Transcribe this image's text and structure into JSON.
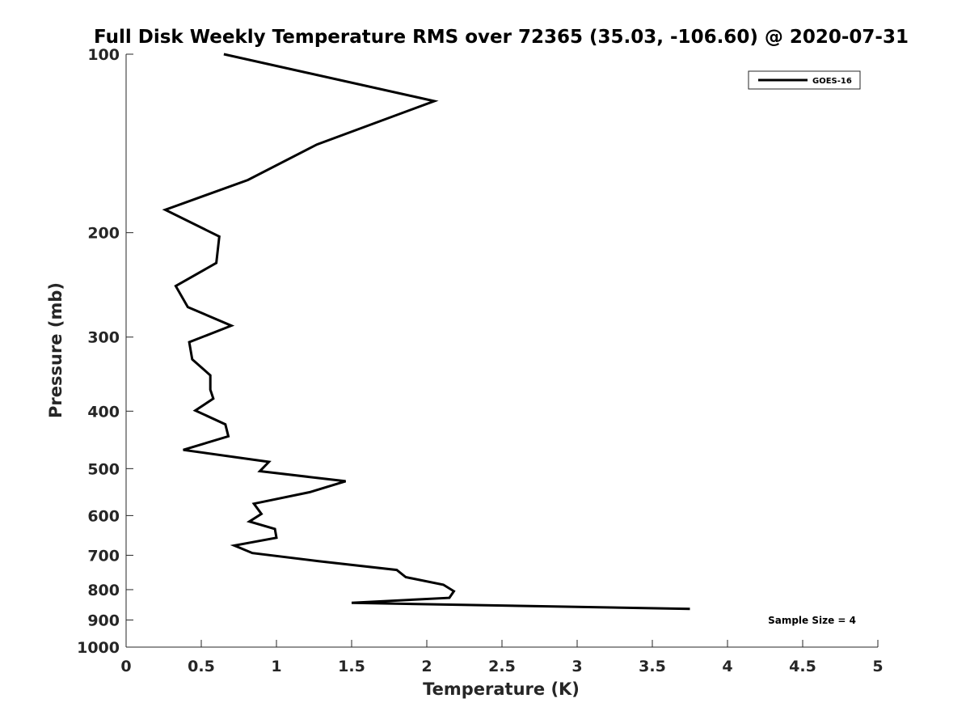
{
  "chart_data": {
    "type": "line",
    "title": "Full Disk Weekly Temperature RMS over 72365 (35.03, -106.60) @ 2020-07-31",
    "xlabel": "Temperature (K)",
    "ylabel": "Pressure (mb)",
    "xlim": [
      0,
      5
    ],
    "ylim": [
      100,
      1000
    ],
    "y_scale": "log",
    "y_reversed": true,
    "grid": false,
    "legend_position": "top-right",
    "x_ticks": [
      "0",
      "0.5",
      "1",
      "1.5",
      "2",
      "2.5",
      "3",
      "3.5",
      "4",
      "4.5",
      "5"
    ],
    "y_ticks": [
      "100",
      "200",
      "300",
      "400",
      "500",
      "600",
      "700",
      "800",
      "900",
      "1000"
    ],
    "series": [
      {
        "name": "GOES-16",
        "color": "#000000",
        "x": [
          0.65,
          2.05,
          1.27,
          0.81,
          0.26,
          0.62,
          0.6,
          0.33,
          0.41,
          0.7,
          0.42,
          0.44,
          0.56,
          0.56,
          0.58,
          0.46,
          0.66,
          0.68,
          0.38,
          0.95,
          0.89,
          1.46,
          1.22,
          0.85,
          0.9,
          0.82,
          0.99,
          1.0,
          0.72,
          0.84,
          1.28,
          1.8,
          1.86,
          2.11,
          2.18,
          2.15,
          1.5,
          3.75
        ],
        "y": [
          100,
          120,
          142,
          163,
          183,
          203,
          225,
          246,
          267,
          287,
          306,
          327,
          348,
          368,
          381,
          399,
          421,
          441,
          465,
          487,
          505,
          525,
          548,
          573,
          596,
          614,
          632,
          654,
          674,
          694,
          716,
          741,
          762,
          785,
          805,
          826,
          842,
          862
        ]
      }
    ],
    "annotations": [
      "Sample Size = 4"
    ]
  }
}
